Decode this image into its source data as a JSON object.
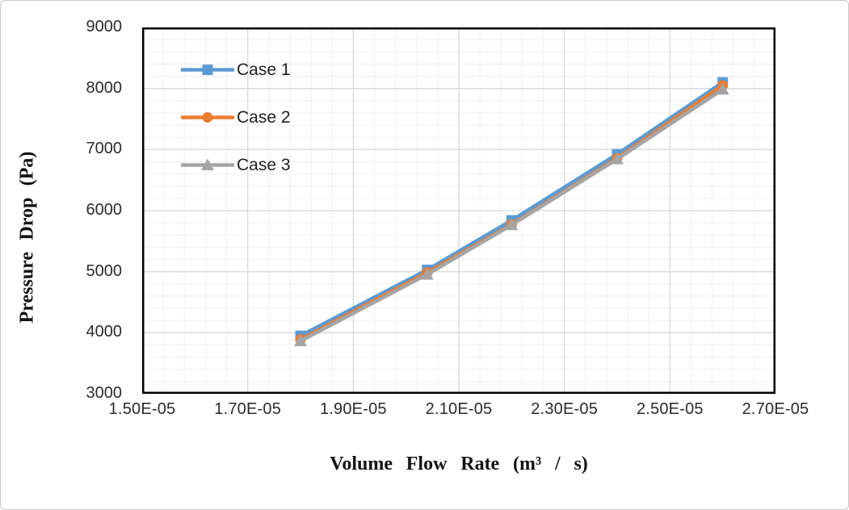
{
  "figure": {
    "background_color": "#ffffff",
    "frame_border_color": "#c9c9c9"
  },
  "chart_data": {
    "type": "line",
    "title": "",
    "xlabel": "Volume Flow Rate (m³ / s)",
    "ylabel": "Pressure Drop (Pa)",
    "xlim": [
      1.5e-05,
      2.7e-05
    ],
    "ylim": [
      3000,
      9000
    ],
    "x_tick_values": [
      1.5e-05,
      1.7e-05,
      1.9e-05,
      2.1e-05,
      2.3e-05,
      2.5e-05,
      2.7e-05
    ],
    "x_tick_labels": [
      "1.50E-05",
      "1.70E-05",
      "1.90E-05",
      "2.10E-05",
      "2.30E-05",
      "2.50E-05",
      "2.70E-05"
    ],
    "y_tick_values": [
      3000,
      4000,
      5000,
      6000,
      7000,
      8000,
      9000
    ],
    "y_tick_labels": [
      "3000",
      "4000",
      "5000",
      "6000",
      "7000",
      "8000",
      "9000"
    ],
    "x_minor_step": 4e-07,
    "y_minor_step": 200,
    "grid": {
      "show_major": true,
      "show_minor": true,
      "major_color": "#d9d9d9",
      "minor_color": "#f0f0f0"
    },
    "plot_border_color": "#000000",
    "axis_text_color": "#2b2b2b",
    "legend_position": "inside-top-left",
    "x": [
      1.8e-05,
      2.04e-05,
      2.2e-05,
      2.4e-05,
      2.6e-05
    ],
    "series": [
      {
        "name": "Case 1",
        "color": "#5b9bd5",
        "marker": "square",
        "values": [
          3950,
          5030,
          5840,
          6925,
          8100
        ]
      },
      {
        "name": "Case 2",
        "color": "#ed7d31",
        "marker": "circle",
        "values": [
          3890,
          4985,
          5775,
          6860,
          8050
        ]
      },
      {
        "name": "Case 3",
        "color": "#a5a5a5",
        "marker": "triangle",
        "values": [
          3865,
          4955,
          5765,
          6845,
          7985
        ]
      }
    ]
  }
}
